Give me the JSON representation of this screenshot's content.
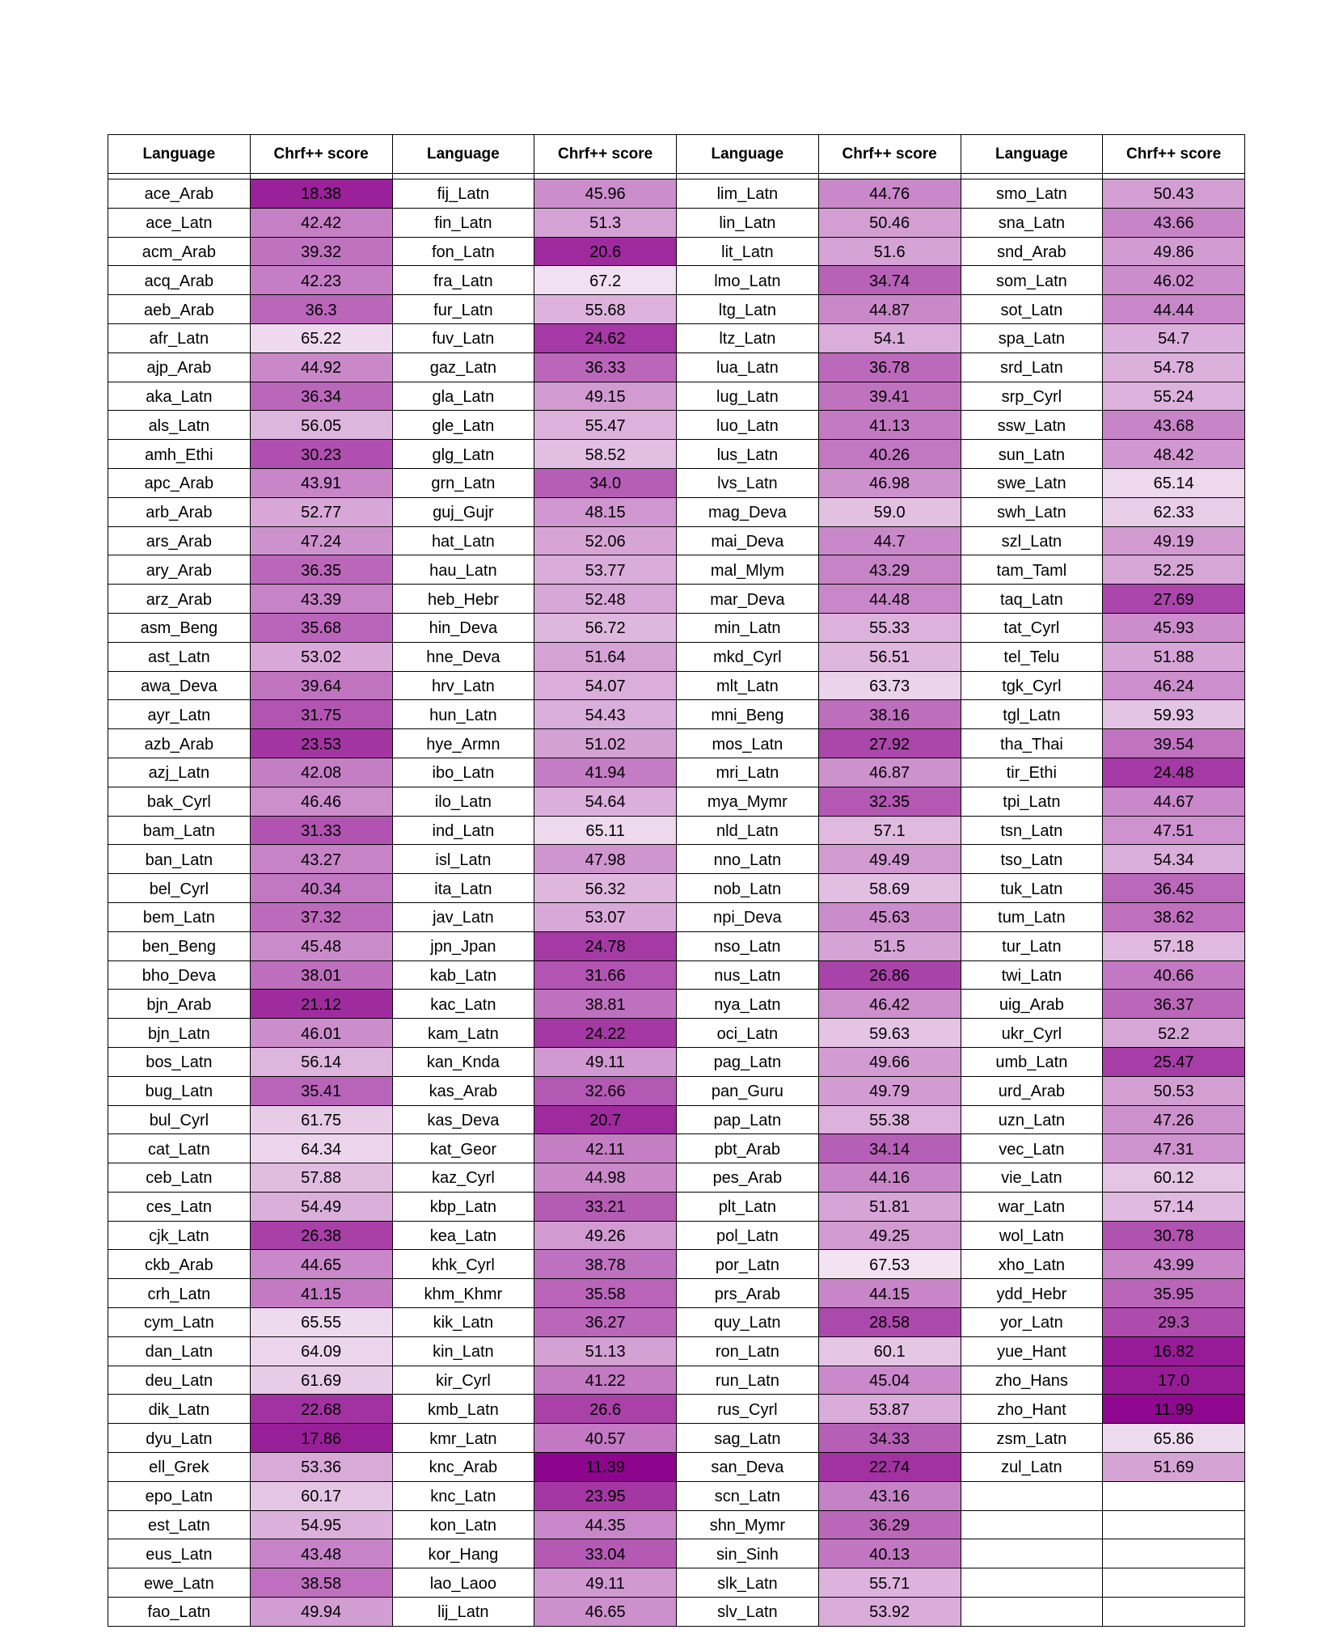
{
  "chart_data": {
    "type": "table",
    "headers": [
      "Language",
      "Chrf++ score",
      "Language",
      "Chrf++ score",
      "Language",
      "Chrf++ score",
      "Language",
      "Chrf++ score"
    ],
    "color_scale": {
      "low_color": "#8b008b",
      "high_color": "#ffffff",
      "domain": [
        10,
        75
      ]
    },
    "columns": [
      [
        [
          "ace_Arab",
          18.38
        ],
        [
          "ace_Latn",
          42.42
        ],
        [
          "acm_Arab",
          39.32
        ],
        [
          "acq_Arab",
          42.23
        ],
        [
          "aeb_Arab",
          36.3
        ],
        [
          "afr_Latn",
          65.22
        ],
        [
          "ajp_Arab",
          44.92
        ],
        [
          "aka_Latn",
          36.34
        ],
        [
          "als_Latn",
          56.05
        ],
        [
          "amh_Ethi",
          30.23
        ],
        [
          "apc_Arab",
          43.91
        ],
        [
          "arb_Arab",
          52.77
        ],
        [
          "ars_Arab",
          47.24
        ],
        [
          "ary_Arab",
          36.35
        ],
        [
          "arz_Arab",
          43.39
        ],
        [
          "asm_Beng",
          35.68
        ],
        [
          "ast_Latn",
          53.02
        ],
        [
          "awa_Deva",
          39.64
        ],
        [
          "ayr_Latn",
          31.75
        ],
        [
          "azb_Arab",
          23.53
        ],
        [
          "azj_Latn",
          42.08
        ],
        [
          "bak_Cyrl",
          46.46
        ],
        [
          "bam_Latn",
          31.33
        ],
        [
          "ban_Latn",
          43.27
        ],
        [
          "bel_Cyrl",
          40.34
        ],
        [
          "bem_Latn",
          37.32
        ],
        [
          "ben_Beng",
          45.48
        ],
        [
          "bho_Deva",
          38.01
        ],
        [
          "bjn_Arab",
          21.12
        ],
        [
          "bjn_Latn",
          46.01
        ],
        [
          "bos_Latn",
          56.14
        ],
        [
          "bug_Latn",
          35.41
        ],
        [
          "bul_Cyrl",
          61.75
        ],
        [
          "cat_Latn",
          64.34
        ],
        [
          "ceb_Latn",
          57.88
        ],
        [
          "ces_Latn",
          54.49
        ],
        [
          "cjk_Latn",
          26.38
        ],
        [
          "ckb_Arab",
          44.65
        ],
        [
          "crh_Latn",
          41.15
        ],
        [
          "cym_Latn",
          65.55
        ],
        [
          "dan_Latn",
          64.09
        ],
        [
          "deu_Latn",
          61.69
        ],
        [
          "dik_Latn",
          22.68
        ],
        [
          "dyu_Latn",
          17.86
        ],
        [
          "ell_Grek",
          53.36
        ],
        [
          "epo_Latn",
          60.17
        ],
        [
          "est_Latn",
          54.95
        ],
        [
          "eus_Latn",
          43.48
        ],
        [
          "ewe_Latn",
          38.58
        ],
        [
          "fao_Latn",
          49.94
        ]
      ],
      [
        [
          "fij_Latn",
          45.96
        ],
        [
          "fin_Latn",
          51.3
        ],
        [
          "fon_Latn",
          20.6
        ],
        [
          "fra_Latn",
          67.2
        ],
        [
          "fur_Latn",
          55.68
        ],
        [
          "fuv_Latn",
          24.62
        ],
        [
          "gaz_Latn",
          36.33
        ],
        [
          "gla_Latn",
          49.15
        ],
        [
          "gle_Latn",
          55.47
        ],
        [
          "glg_Latn",
          58.52
        ],
        [
          "grn_Latn",
          34.0
        ],
        [
          "guj_Gujr",
          48.15
        ],
        [
          "hat_Latn",
          52.06
        ],
        [
          "hau_Latn",
          53.77
        ],
        [
          "heb_Hebr",
          52.48
        ],
        [
          "hin_Deva",
          56.72
        ],
        [
          "hne_Deva",
          51.64
        ],
        [
          "hrv_Latn",
          54.07
        ],
        [
          "hun_Latn",
          54.43
        ],
        [
          "hye_Armn",
          51.02
        ],
        [
          "ibo_Latn",
          41.94
        ],
        [
          "ilo_Latn",
          54.64
        ],
        [
          "ind_Latn",
          65.11
        ],
        [
          "isl_Latn",
          47.98
        ],
        [
          "ita_Latn",
          56.32
        ],
        [
          "jav_Latn",
          53.07
        ],
        [
          "jpn_Jpan",
          24.78
        ],
        [
          "kab_Latn",
          31.66
        ],
        [
          "kac_Latn",
          38.81
        ],
        [
          "kam_Latn",
          24.22
        ],
        [
          "kan_Knda",
          49.11
        ],
        [
          "kas_Arab",
          32.66
        ],
        [
          "kas_Deva",
          20.7
        ],
        [
          "kat_Geor",
          42.11
        ],
        [
          "kaz_Cyrl",
          44.98
        ],
        [
          "kbp_Latn",
          33.21
        ],
        [
          "kea_Latn",
          49.26
        ],
        [
          "khk_Cyrl",
          38.78
        ],
        [
          "khm_Khmr",
          35.58
        ],
        [
          "kik_Latn",
          36.27
        ],
        [
          "kin_Latn",
          51.13
        ],
        [
          "kir_Cyrl",
          41.22
        ],
        [
          "kmb_Latn",
          26.6
        ],
        [
          "kmr_Latn",
          40.57
        ],
        [
          "knc_Arab",
          11.39
        ],
        [
          "knc_Latn",
          23.95
        ],
        [
          "kon_Latn",
          44.35
        ],
        [
          "kor_Hang",
          33.04
        ],
        [
          "lao_Laoo",
          49.11
        ],
        [
          "lij_Latn",
          46.65
        ]
      ],
      [
        [
          "lim_Latn",
          44.76
        ],
        [
          "lin_Latn",
          50.46
        ],
        [
          "lit_Latn",
          51.6
        ],
        [
          "lmo_Latn",
          34.74
        ],
        [
          "ltg_Latn",
          44.87
        ],
        [
          "ltz_Latn",
          54.1
        ],
        [
          "lua_Latn",
          36.78
        ],
        [
          "lug_Latn",
          39.41
        ],
        [
          "luo_Latn",
          41.13
        ],
        [
          "lus_Latn",
          40.26
        ],
        [
          "lvs_Latn",
          46.98
        ],
        [
          "mag_Deva",
          59.0
        ],
        [
          "mai_Deva",
          44.7
        ],
        [
          "mal_Mlym",
          43.29
        ],
        [
          "mar_Deva",
          44.48
        ],
        [
          "min_Latn",
          55.33
        ],
        [
          "mkd_Cyrl",
          56.51
        ],
        [
          "mlt_Latn",
          63.73
        ],
        [
          "mni_Beng",
          38.16
        ],
        [
          "mos_Latn",
          27.92
        ],
        [
          "mri_Latn",
          46.87
        ],
        [
          "mya_Mymr",
          32.35
        ],
        [
          "nld_Latn",
          57.1
        ],
        [
          "nno_Latn",
          49.49
        ],
        [
          "nob_Latn",
          58.69
        ],
        [
          "npi_Deva",
          45.63
        ],
        [
          "nso_Latn",
          51.5
        ],
        [
          "nus_Latn",
          26.86
        ],
        [
          "nya_Latn",
          46.42
        ],
        [
          "oci_Latn",
          59.63
        ],
        [
          "pag_Latn",
          49.66
        ],
        [
          "pan_Guru",
          49.79
        ],
        [
          "pap_Latn",
          55.38
        ],
        [
          "pbt_Arab",
          34.14
        ],
        [
          "pes_Arab",
          44.16
        ],
        [
          "plt_Latn",
          51.81
        ],
        [
          "pol_Latn",
          49.25
        ],
        [
          "por_Latn",
          67.53
        ],
        [
          "prs_Arab",
          44.15
        ],
        [
          "quy_Latn",
          28.58
        ],
        [
          "ron_Latn",
          60.1
        ],
        [
          "run_Latn",
          45.04
        ],
        [
          "rus_Cyrl",
          53.87
        ],
        [
          "sag_Latn",
          34.33
        ],
        [
          "san_Deva",
          22.74
        ],
        [
          "scn_Latn",
          43.16
        ],
        [
          "shn_Mymr",
          36.29
        ],
        [
          "sin_Sinh",
          40.13
        ],
        [
          "slk_Latn",
          55.71
        ],
        [
          "slv_Latn",
          53.92
        ]
      ],
      [
        [
          "smo_Latn",
          50.43
        ],
        [
          "sna_Latn",
          43.66
        ],
        [
          "snd_Arab",
          49.86
        ],
        [
          "som_Latn",
          46.02
        ],
        [
          "sot_Latn",
          44.44
        ],
        [
          "spa_Latn",
          54.7
        ],
        [
          "srd_Latn",
          54.78
        ],
        [
          "srp_Cyrl",
          55.24
        ],
        [
          "ssw_Latn",
          43.68
        ],
        [
          "sun_Latn",
          48.42
        ],
        [
          "swe_Latn",
          65.14
        ],
        [
          "swh_Latn",
          62.33
        ],
        [
          "szl_Latn",
          49.19
        ],
        [
          "tam_Taml",
          52.25
        ],
        [
          "taq_Latn",
          27.69
        ],
        [
          "tat_Cyrl",
          45.93
        ],
        [
          "tel_Telu",
          51.88
        ],
        [
          "tgk_Cyrl",
          46.24
        ],
        [
          "tgl_Latn",
          59.93
        ],
        [
          "tha_Thai",
          39.54
        ],
        [
          "tir_Ethi",
          24.48
        ],
        [
          "tpi_Latn",
          44.67
        ],
        [
          "tsn_Latn",
          47.51
        ],
        [
          "tso_Latn",
          54.34
        ],
        [
          "tuk_Latn",
          36.45
        ],
        [
          "tum_Latn",
          38.62
        ],
        [
          "tur_Latn",
          57.18
        ],
        [
          "twi_Latn",
          40.66
        ],
        [
          "uig_Arab",
          36.37
        ],
        [
          "ukr_Cyrl",
          52.2
        ],
        [
          "umb_Latn",
          25.47
        ],
        [
          "urd_Arab",
          50.53
        ],
        [
          "uzn_Latn",
          47.26
        ],
        [
          "vec_Latn",
          47.31
        ],
        [
          "vie_Latn",
          60.12
        ],
        [
          "war_Latn",
          57.14
        ],
        [
          "wol_Latn",
          30.78
        ],
        [
          "xho_Latn",
          43.99
        ],
        [
          "ydd_Hebr",
          35.95
        ],
        [
          "yor_Latn",
          29.3
        ],
        [
          "yue_Hant",
          16.82
        ],
        [
          "zho_Hans",
          17.0
        ],
        [
          "zho_Hant",
          11.99
        ],
        [
          "zsm_Latn",
          65.86
        ],
        [
          "zul_Latn",
          51.69
        ]
      ]
    ]
  }
}
